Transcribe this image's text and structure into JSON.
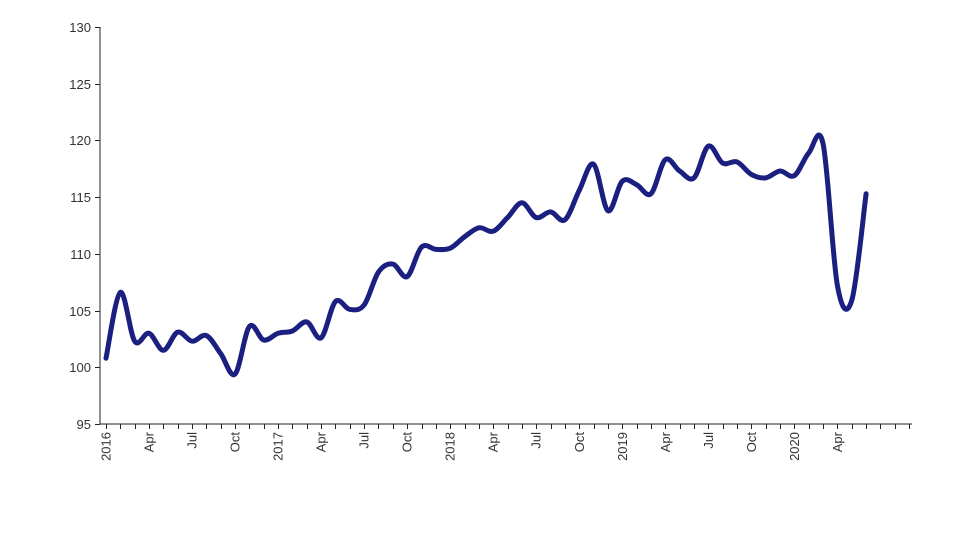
{
  "chart_data": {
    "type": "line",
    "title": "",
    "xlabel": "",
    "ylabel": "",
    "ylim": [
      95,
      130
    ],
    "y_ticks": [
      95,
      100,
      105,
      110,
      115,
      120,
      125,
      130
    ],
    "x_tick_labels": [
      "2016",
      "Apr",
      "Jul",
      "Oct",
      "2017",
      "Apr",
      "Jul",
      "Oct",
      "2018",
      "Apr",
      "Jul",
      "Oct",
      "2019",
      "Apr",
      "Jul",
      "Oct",
      "2020",
      "Apr"
    ],
    "x_tick_start": "2016-01",
    "x_tick_step_months": 3,
    "grid": false,
    "legend": "none",
    "line_color": "#1a1f80",
    "series": [
      {
        "x": [
          "2016-01",
          "2016-02",
          "2016-03",
          "2016-04",
          "2016-05",
          "2016-06",
          "2016-07",
          "2016-08",
          "2016-09",
          "2016-10",
          "2016-11",
          "2016-12",
          "2017-01",
          "2017-02",
          "2017-03",
          "2017-04",
          "2017-05",
          "2017-06",
          "2017-07",
          "2017-08",
          "2017-09",
          "2017-10",
          "2017-11",
          "2017-12",
          "2018-01",
          "2018-02",
          "2018-03",
          "2018-04",
          "2018-05",
          "2018-06",
          "2018-07",
          "2018-08",
          "2018-09",
          "2018-10",
          "2018-11",
          "2018-12",
          "2019-01",
          "2019-02",
          "2019-03",
          "2019-04",
          "2019-05",
          "2019-06",
          "2019-07",
          "2019-08",
          "2019-09",
          "2019-10",
          "2019-11",
          "2019-12",
          "2020-01",
          "2020-02",
          "2020-03",
          "2020-04",
          "2020-05",
          "2020-06"
        ],
        "values": [
          100.8,
          106.6,
          102.3,
          103.0,
          101.5,
          103.1,
          102.3,
          102.8,
          101.2,
          99.4,
          103.6,
          102.4,
          103.0,
          103.2,
          104.0,
          102.6,
          105.8,
          105.1,
          105.5,
          108.4,
          109.1,
          108.0,
          110.6,
          110.4,
          110.5,
          111.5,
          112.3,
          112.0,
          113.2,
          114.5,
          113.2,
          113.7,
          113.0,
          115.6,
          117.9,
          113.8,
          116.4,
          116.1,
          115.3,
          118.3,
          117.3,
          116.7,
          119.5,
          118.0,
          118.1,
          117.0,
          116.7,
          117.3,
          116.9,
          118.9,
          119.7,
          107.2,
          105.9,
          115.3
        ]
      }
    ]
  }
}
